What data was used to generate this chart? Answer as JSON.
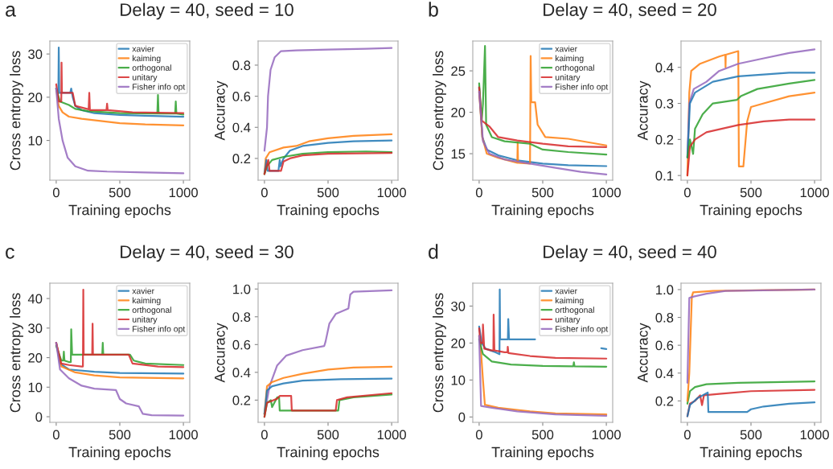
{
  "chart_data": [
    {
      "type": "line",
      "title": "Delay = 40, seed = 10",
      "annotations": [
        "a"
      ],
      "xlabel": "Training epochs",
      "ylabel": "Cross entropy loss",
      "xlim": [
        -50,
        1050
      ],
      "ylim": [
        0.8,
        33
      ],
      "xticks": [
        0,
        500,
        1000
      ],
      "yticks": [
        10,
        20,
        30
      ],
      "grid": false,
      "legend": "top right",
      "series": [
        {
          "name": "xavier",
          "color": "#1f77b4",
          "x": [
            0,
            10,
            17,
            20,
            24,
            40,
            110,
            118,
            130,
            150,
            200,
            300,
            500,
            700,
            1000
          ],
          "values": [
            22,
            20.5,
            21,
            31.5,
            21,
            21,
            21,
            22,
            20,
            18,
            17,
            16.3,
            15.9,
            15.7,
            15.5
          ]
        },
        {
          "name": "kaiming",
          "color": "#ff7f0e",
          "x": [
            0,
            20,
            50,
            100,
            200,
            350,
            500,
            700,
            1000
          ],
          "values": [
            22,
            18,
            16.5,
            15.5,
            15,
            14.5,
            14,
            13.7,
            13.5
          ]
        },
        {
          "name": "orthogonal",
          "color": "#2ca02c",
          "x": [
            0,
            30,
            100,
            150,
            250,
            500,
            795,
            800,
            805,
            935,
            940,
            945,
            1000
          ],
          "values": [
            22,
            19,
            18.2,
            17.3,
            16.8,
            16.3,
            16.2,
            20.5,
            16.2,
            16.2,
            19,
            16.2,
            16
          ]
        },
        {
          "name": "unitary",
          "color": "#d62728",
          "x": [
            0,
            20,
            40,
            42,
            45,
            130,
            150,
            255,
            260,
            265,
            395,
            400,
            405,
            600,
            1000
          ],
          "values": [
            23,
            19,
            19,
            28,
            21,
            21,
            18,
            17.2,
            21,
            17,
            17,
            18.5,
            17,
            16.5,
            16.3
          ]
        },
        {
          "name": "Fisher info opt",
          "color": "#9467bd",
          "x": [
            0,
            20,
            50,
            90,
            150,
            250,
            400,
            700,
            1000
          ],
          "values": [
            22,
            15,
            10,
            6,
            4,
            3,
            2.8,
            2.6,
            2.4
          ]
        }
      ]
    },
    {
      "type": "line",
      "xlabel": "Training epochs",
      "ylabel": "Accuracy",
      "xlim": [
        -50,
        1050
      ],
      "ylim": [
        0.06,
        0.955
      ],
      "xticks": [
        0,
        500,
        1000
      ],
      "yticks": [
        0.2,
        0.4,
        0.6,
        0.8
      ],
      "grid": false,
      "legend": false,
      "series": [
        {
          "color": "#9467bd",
          "x": [
            0,
            20,
            28,
            48,
            80,
            130,
            250,
            500,
            800,
            1000
          ],
          "values": [
            0.25,
            0.4,
            0.6,
            0.77,
            0.85,
            0.89,
            0.895,
            0.9,
            0.905,
            0.91
          ]
        },
        {
          "color": "#ff7f0e",
          "x": [
            0,
            10,
            40,
            150,
            250,
            350,
            500,
            700,
            1000
          ],
          "values": [
            0.1,
            0.2,
            0.24,
            0.27,
            0.28,
            0.31,
            0.33,
            0.345,
            0.355
          ]
        },
        {
          "color": "#1f77b4",
          "x": [
            0,
            15,
            25,
            110,
            120,
            125,
            150,
            200,
            300,
            500,
            700,
            1000
          ],
          "values": [
            0.1,
            0.19,
            0.12,
            0.12,
            0.19,
            0.15,
            0.2,
            0.25,
            0.28,
            0.3,
            0.31,
            0.315
          ]
        },
        {
          "color": "#2ca02c",
          "x": [
            0,
            20,
            60,
            150,
            300,
            500,
            800,
            1000
          ],
          "values": [
            0.1,
            0.15,
            0.19,
            0.21,
            0.23,
            0.24,
            0.245,
            0.24
          ]
        },
        {
          "color": "#d62728",
          "x": [
            0,
            30,
            40,
            130,
            150,
            200,
            300,
            500,
            1000
          ],
          "values": [
            0.1,
            0.19,
            0.12,
            0.12,
            0.18,
            0.2,
            0.22,
            0.23,
            0.235
          ]
        }
      ]
    },
    {
      "type": "line",
      "title": "Delay = 40, seed = 20",
      "annotations": [
        "b"
      ],
      "xlabel": "Training epochs",
      "ylabel": "Cross entropy loss",
      "xlim": [
        -50,
        1050
      ],
      "ylim": [
        11.8,
        28.6
      ],
      "xticks": [
        0,
        500,
        1000
      ],
      "yticks": [
        15,
        20,
        25
      ],
      "grid": false,
      "legend": "top right",
      "series": [
        {
          "name": "xavier",
          "color": "#1f77b4",
          "x": [
            0,
            25,
            60,
            150,
            300,
            500,
            700,
            1000
          ],
          "values": [
            23,
            17,
            15.5,
            14.8,
            14.2,
            13.8,
            13.6,
            13.5
          ]
        },
        {
          "name": "kaiming",
          "color": "#ff7f0e",
          "x": [
            0,
            25,
            60,
            150,
            300,
            303,
            306,
            400,
            405,
            410,
            440,
            460,
            520,
            700,
            1000
          ],
          "values": [
            22.5,
            17,
            15,
            14.5,
            13.9,
            16.3,
            13.9,
            13.8,
            26.8,
            21.2,
            21.2,
            18.5,
            17,
            16.8,
            16
          ]
        },
        {
          "name": "orthogonal",
          "color": "#2ca02c",
          "x": [
            0,
            20,
            30,
            46,
            55,
            100,
            200,
            400,
            500,
            700,
            1000
          ],
          "values": [
            23.5,
            19,
            21,
            28,
            18.5,
            17,
            16.5,
            16.2,
            15.5,
            15.2,
            14.9
          ]
        },
        {
          "name": "unitary",
          "color": "#d62728",
          "x": [
            0,
            20,
            80,
            150,
            300,
            500,
            700,
            1000
          ],
          "values": [
            23,
            19,
            18.3,
            17,
            16.6,
            16.2,
            15.9,
            15.8
          ]
        },
        {
          "name": "Fisher info opt",
          "color": "#9467bd",
          "x": [
            0,
            30,
            80,
            200,
            400,
            600,
            800,
            1000
          ],
          "values": [
            22.5,
            16.5,
            15,
            14.3,
            13.8,
            13.3,
            12.8,
            12.5
          ]
        }
      ]
    },
    {
      "type": "line",
      "xlabel": "Training epochs",
      "ylabel": "Accuracy",
      "xlim": [
        -50,
        1050
      ],
      "ylim": [
        0.087,
        0.473
      ],
      "xticks": [
        0,
        500,
        1000
      ],
      "yticks": [
        0.1,
        0.2,
        0.3,
        0.4
      ],
      "grid": false,
      "legend": false,
      "series": [
        {
          "color": "#ff7f0e",
          "x": [
            0,
            15,
            30,
            100,
            250,
            298,
            300,
            302,
            400,
            405,
            440,
            470,
            500,
            600,
            800,
            1000
          ],
          "values": [
            0.1,
            0.33,
            0.39,
            0.41,
            0.43,
            0.435,
            0.4,
            0.435,
            0.445,
            0.125,
            0.125,
            0.25,
            0.29,
            0.3,
            0.32,
            0.33
          ]
        },
        {
          "color": "#9467bd",
          "x": [
            0,
            15,
            50,
            150,
            250,
            400,
            600,
            800,
            1000
          ],
          "values": [
            0.15,
            0.3,
            0.34,
            0.36,
            0.39,
            0.41,
            0.425,
            0.44,
            0.45
          ]
        },
        {
          "color": "#1f77b4",
          "x": [
            0,
            20,
            60,
            200,
            400,
            600,
            800,
            1000
          ],
          "values": [
            0.15,
            0.3,
            0.33,
            0.36,
            0.375,
            0.38,
            0.385,
            0.385
          ]
        },
        {
          "color": "#2ca02c",
          "x": [
            0,
            20,
            45,
            60,
            120,
            200,
            390,
            420,
            550,
            800,
            1000
          ],
          "values": [
            0.15,
            0.2,
            0.16,
            0.23,
            0.27,
            0.3,
            0.31,
            0.32,
            0.34,
            0.355,
            0.365
          ]
        },
        {
          "color": "#d62728",
          "x": [
            0,
            20,
            60,
            150,
            400,
            600,
            800,
            1000
          ],
          "values": [
            0.1,
            0.18,
            0.2,
            0.22,
            0.24,
            0.25,
            0.255,
            0.255
          ]
        }
      ]
    },
    {
      "type": "line",
      "title": "Delay = 40, seed = 30",
      "annotations": [
        "c"
      ],
      "xlabel": "Training epochs",
      "ylabel": "Cross entropy loss",
      "xlim": [
        -50,
        1050
      ],
      "ylim": [
        -1.9,
        45.2
      ],
      "xticks": [
        0,
        500,
        1000
      ],
      "yticks": [
        0,
        10,
        20,
        30,
        40
      ],
      "grid": false,
      "legend": "top right",
      "series": [
        {
          "name": "xavier",
          "color": "#1f77b4",
          "x": [
            0,
            30,
            100,
            300,
            500,
            1000
          ],
          "values": [
            25,
            18,
            16,
            15.2,
            14.8,
            14.6
          ]
        },
        {
          "name": "kaiming",
          "color": "#ff7f0e",
          "x": [
            0,
            40,
            150,
            300,
            500,
            1000
          ],
          "values": [
            25,
            17,
            15,
            14,
            13.3,
            13
          ]
        },
        {
          "name": "orthogonal",
          "color": "#2ca02c",
          "x": [
            0,
            40,
            55,
            60,
            65,
            100,
            115,
            118,
            125,
            362,
            366,
            370,
            580,
            610,
            700,
            1000
          ],
          "values": [
            24,
            19,
            19,
            22,
            19,
            18.5,
            18.5,
            29.6,
            21,
            21,
            25,
            21,
            21,
            19,
            18,
            17.5
          ]
        },
        {
          "name": "unitary",
          "color": "#d62728",
          "x": [
            0,
            40,
            100,
            200,
            210,
            213,
            216,
            283,
            286,
            289,
            570,
            600,
            800,
            1000
          ],
          "values": [
            25,
            18,
            17.5,
            17,
            17,
            43,
            21,
            21,
            31.5,
            21,
            21,
            18,
            17,
            16.8
          ]
        },
        {
          "name": "Fisher info opt",
          "color": "#9467bd",
          "x": [
            0,
            30,
            100,
            200,
            300,
            470,
            500,
            550,
            650,
            680,
            750,
            1000
          ],
          "values": [
            25,
            16,
            13,
            10.5,
            9.5,
            9,
            6,
            4.5,
            3.5,
            1,
            0.5,
            0.4
          ]
        }
      ]
    },
    {
      "type": "line",
      "xlabel": "Training epochs",
      "ylabel": "Accuracy",
      "xlim": [
        -50,
        1050
      ],
      "ylim": [
        0.04,
        1.042
      ],
      "xticks": [
        0,
        500,
        1000
      ],
      "yticks": [
        0.2,
        0.4,
        0.6,
        0.8,
        {
          "value": 1,
          "label": "1.0"
        }
      ],
      "grid": false,
      "legend": false,
      "series": [
        {
          "color": "#9467bd",
          "x": [
            0,
            40,
            100,
            170,
            300,
            470,
            480,
            510,
            560,
            660,
            675,
            700,
            1000
          ],
          "values": [
            0.1,
            0.3,
            0.45,
            0.52,
            0.56,
            0.59,
            0.62,
            0.75,
            0.82,
            0.86,
            0.96,
            0.98,
            0.99
          ]
        },
        {
          "color": "#ff7f0e",
          "x": [
            0,
            20,
            60,
            150,
            300,
            500,
            700,
            1000
          ],
          "values": [
            0.1,
            0.3,
            0.33,
            0.36,
            0.39,
            0.42,
            0.435,
            0.44
          ]
        },
        {
          "color": "#1f77b4",
          "x": [
            0,
            20,
            60,
            150,
            300,
            600,
            1000
          ],
          "values": [
            0.1,
            0.27,
            0.3,
            0.32,
            0.34,
            0.35,
            0.355
          ]
        },
        {
          "color": "#2ca02c",
          "x": [
            0,
            20,
            50,
            60,
            100,
            115,
            120,
            580,
            590,
            700,
            1000
          ],
          "values": [
            0.08,
            0.18,
            0.2,
            0.15,
            0.22,
            0.22,
            0.125,
            0.125,
            0.2,
            0.22,
            0.24
          ]
        },
        {
          "color": "#d62728",
          "x": [
            0,
            20,
            100,
            120,
            210,
            215,
            560,
            570,
            650,
            1000
          ],
          "values": [
            0.08,
            0.18,
            0.21,
            0.23,
            0.23,
            0.125,
            0.125,
            0.2,
            0.22,
            0.25
          ]
        }
      ]
    },
    {
      "type": "line",
      "title": "Delay = 40, seed = 40",
      "annotations": [
        "d"
      ],
      "xlabel": "Training epochs",
      "ylabel": "Cross entropy loss",
      "xlim": [
        -50,
        1050
      ],
      "ylim": [
        -1.45,
        36.2
      ],
      "xticks": [
        0,
        500,
        1000
      ],
      "yticks": [
        0,
        10,
        20,
        30
      ],
      "grid": false,
      "legend": "top right",
      "series": [
        {
          "name": "xavier",
          "color": "#1f77b4",
          "x": [
            0,
            20,
            50,
            130,
            160,
            162,
            165,
            226,
            229,
            235,
            440,
            700,
            960,
            1000
          ],
          "values": [
            24.5,
            20,
            18.5,
            17.5,
            17,
            34.5,
            21,
            21,
            26.5,
            21,
            21,
            null,
            18.6,
            18.4
          ]
        },
        {
          "name": "kaiming",
          "color": "#ff7f0e",
          "x": [
            0,
            10,
            30,
            45,
            150,
            400,
            600,
            1000
          ],
          "values": [
            22,
            20,
            10,
            3.3,
            2.5,
            1.5,
            1,
            0.7
          ]
        },
        {
          "name": "orthogonal",
          "color": "#2ca02c",
          "x": [
            0,
            30,
            100,
            250,
            500,
            740,
            745,
            750,
            1000
          ],
          "values": [
            21,
            17,
            15,
            14.2,
            13.8,
            13.7,
            14.8,
            13.7,
            13.6
          ]
        },
        {
          "name": "unitary",
          "color": "#d62728",
          "x": [
            0,
            10,
            28,
            30,
            40,
            100,
            112,
            114,
            120,
            200,
            223,
            225,
            230,
            400,
            600,
            1000
          ],
          "values": [
            24,
            20,
            20,
            25,
            18.5,
            18,
            18,
            27.7,
            18,
            17.5,
            17.5,
            19,
            17.3,
            16.5,
            16,
            15.8
          ]
        },
        {
          "name": "Fisher info opt",
          "color": "#9467bd",
          "x": [
            0,
            15,
            100,
            300,
            600,
            1000
          ],
          "values": [
            22,
            3,
            2.5,
            1.5,
            0.7,
            0.3
          ]
        }
      ]
    },
    {
      "type": "line",
      "xlabel": "Training epochs",
      "ylabel": "Accuracy",
      "xlim": [
        -50,
        1050
      ],
      "ylim": [
        0.046,
        1.046
      ],
      "xticks": [
        0,
        500,
        1000
      ],
      "yticks": [
        0.2,
        0.4,
        0.6,
        0.8,
        {
          "value": 1,
          "label": "1.0"
        }
      ],
      "grid": false,
      "legend": false,
      "series": [
        {
          "color": "#2ca02c",
          "x": [
            0,
            20,
            60,
            150,
            400,
            1000
          ],
          "values": [
            0.18,
            0.27,
            0.3,
            0.32,
            0.33,
            0.34
          ]
        },
        {
          "color": "#d62728",
          "x": [
            0,
            20,
            60,
            100,
            115,
            130,
            250,
            500,
            1000
          ],
          "values": [
            0.09,
            0.18,
            0.2,
            0.24,
            0.17,
            0.24,
            0.25,
            0.27,
            0.28
          ]
        },
        {
          "color": "#1f77b4",
          "x": [
            0,
            20,
            80,
            160,
            165,
            470,
            500,
            600,
            800,
            1000
          ],
          "values": [
            0.09,
            0.17,
            0.22,
            0.26,
            0.12,
            0.12,
            0.14,
            0.16,
            0.18,
            0.19
          ]
        },
        {
          "color": "#ff7f0e",
          "x": [
            0,
            15,
            35,
            45,
            200,
            1000
          ],
          "values": [
            0.2,
            0.4,
            0.95,
            0.98,
            0.99,
            1.0
          ]
        },
        {
          "color": "#9467bd",
          "x": [
            0,
            15,
            50,
            150,
            300,
            1000
          ],
          "values": [
            0.33,
            0.94,
            0.95,
            0.97,
            0.99,
            1.0
          ]
        }
      ]
    }
  ]
}
